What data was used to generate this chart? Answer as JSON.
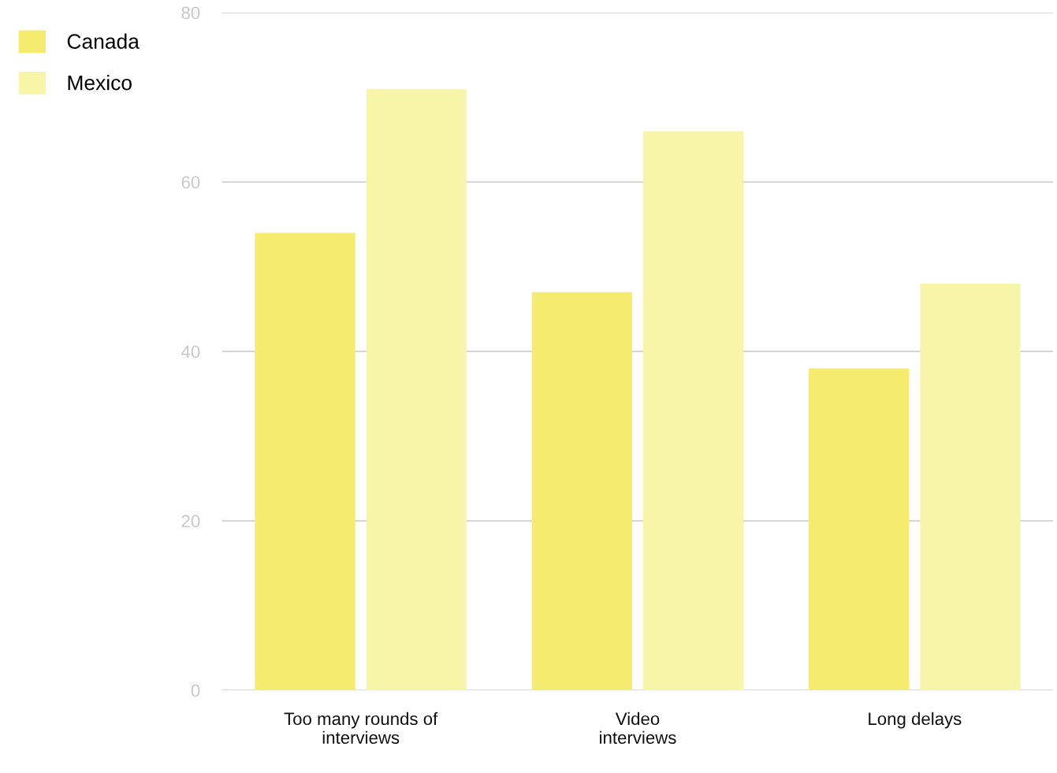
{
  "chart_data": {
    "type": "bar",
    "categories": [
      "Too many rounds of\ninterviews",
      "Video\ninterviews",
      "Long delays"
    ],
    "series": [
      {
        "name": "Canada",
        "color": "#f5eb6e",
        "values": [
          54,
          47,
          38
        ]
      },
      {
        "name": "Mexico",
        "color": "#f7f5a8",
        "values": [
          71,
          66,
          48
        ]
      }
    ],
    "ylim": [
      0,
      80
    ],
    "yticks": [
      0,
      20,
      40,
      60,
      80
    ],
    "grid": "y",
    "legend": "top left"
  }
}
